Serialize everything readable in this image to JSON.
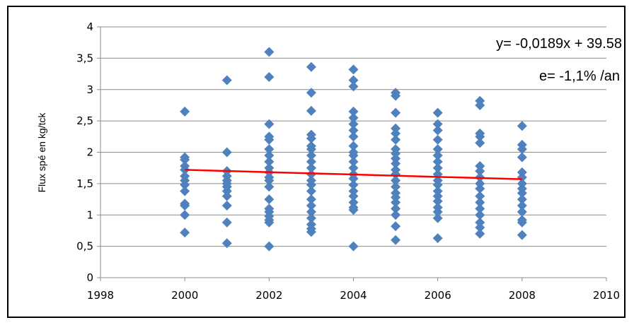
{
  "chart_data": {
    "type": "scatter",
    "title": "",
    "xlabel": "",
    "ylabel": "Flux spé en kg/tck",
    "xlim": [
      1998,
      2010
    ],
    "ylim": [
      0,
      4
    ],
    "x_ticks": [
      "1998",
      "2000",
      "2002",
      "2004",
      "2006",
      "2008",
      "2010"
    ],
    "y_ticks": [
      "0",
      "0,5",
      "1",
      "1,5",
      "2",
      "2,5",
      "3",
      "3,5",
      "4"
    ],
    "grid": "horizontal",
    "legend": "none",
    "marker_color": "#4F81BD",
    "trend_color": "#FF0000",
    "annotations": {
      "equation": "y= -0,0189x + 39.58",
      "rate": "e= -1,1% /an"
    },
    "trendline": {
      "x": [
        2000,
        2008
      ],
      "y": [
        1.72,
        1.57
      ]
    },
    "points": [
      {
        "x": 2000,
        "y": [
          2.65,
          1.92,
          1.88,
          1.78,
          1.72,
          1.62,
          1.55,
          1.48,
          1.38,
          1.18,
          1.15,
          1.0,
          0.72
        ]
      },
      {
        "x": 2001,
        "y": [
          3.15,
          2.0,
          1.7,
          1.62,
          1.55,
          1.5,
          1.45,
          1.38,
          1.3,
          1.15,
          0.88,
          0.55
        ]
      },
      {
        "x": 2002,
        "y": [
          3.6,
          3.2,
          2.45,
          2.25,
          2.2,
          2.05,
          1.95,
          1.85,
          1.75,
          1.68,
          1.6,
          1.55,
          1.45,
          1.25,
          1.1,
          1.05,
          0.98,
          0.92,
          0.88,
          0.5
        ]
      },
      {
        "x": 2003,
        "y": [
          3.36,
          2.95,
          2.66,
          2.28,
          2.22,
          2.1,
          2.05,
          1.95,
          1.85,
          1.75,
          1.65,
          1.55,
          1.48,
          1.38,
          1.25,
          1.15,
          1.05,
          0.95,
          0.85,
          0.78,
          0.73
        ]
      },
      {
        "x": 2004,
        "y": [
          3.32,
          3.15,
          3.05,
          2.65,
          2.55,
          2.45,
          2.35,
          2.25,
          2.1,
          2.0,
          1.95,
          1.85,
          1.75,
          1.65,
          1.58,
          1.48,
          1.38,
          1.3,
          1.2,
          1.12,
          1.08,
          0.5
        ]
      },
      {
        "x": 2005,
        "y": [
          2.95,
          2.9,
          2.63,
          2.38,
          2.3,
          2.2,
          2.05,
          1.98,
          1.9,
          1.82,
          1.72,
          1.65,
          1.55,
          1.45,
          1.35,
          1.28,
          1.2,
          1.1,
          1.0,
          0.82,
          0.6
        ]
      },
      {
        "x": 2006,
        "y": [
          2.63,
          2.45,
          2.35,
          2.2,
          2.05,
          1.95,
          1.85,
          1.75,
          1.65,
          1.55,
          1.48,
          1.38,
          1.3,
          1.22,
          1.12,
          1.05,
          0.95,
          0.63
        ]
      },
      {
        "x": 2007,
        "y": [
          2.82,
          2.75,
          2.3,
          2.25,
          2.15,
          1.78,
          1.7,
          1.6,
          1.5,
          1.42,
          1.3,
          1.2,
          1.1,
          1.0,
          0.88,
          0.8,
          0.7
        ]
      },
      {
        "x": 2008,
        "y": [
          2.42,
          2.12,
          2.05,
          1.92,
          1.68,
          1.6,
          1.5,
          1.42,
          1.35,
          1.25,
          1.15,
          1.05,
          0.92,
          0.88,
          0.68
        ]
      }
    ]
  }
}
